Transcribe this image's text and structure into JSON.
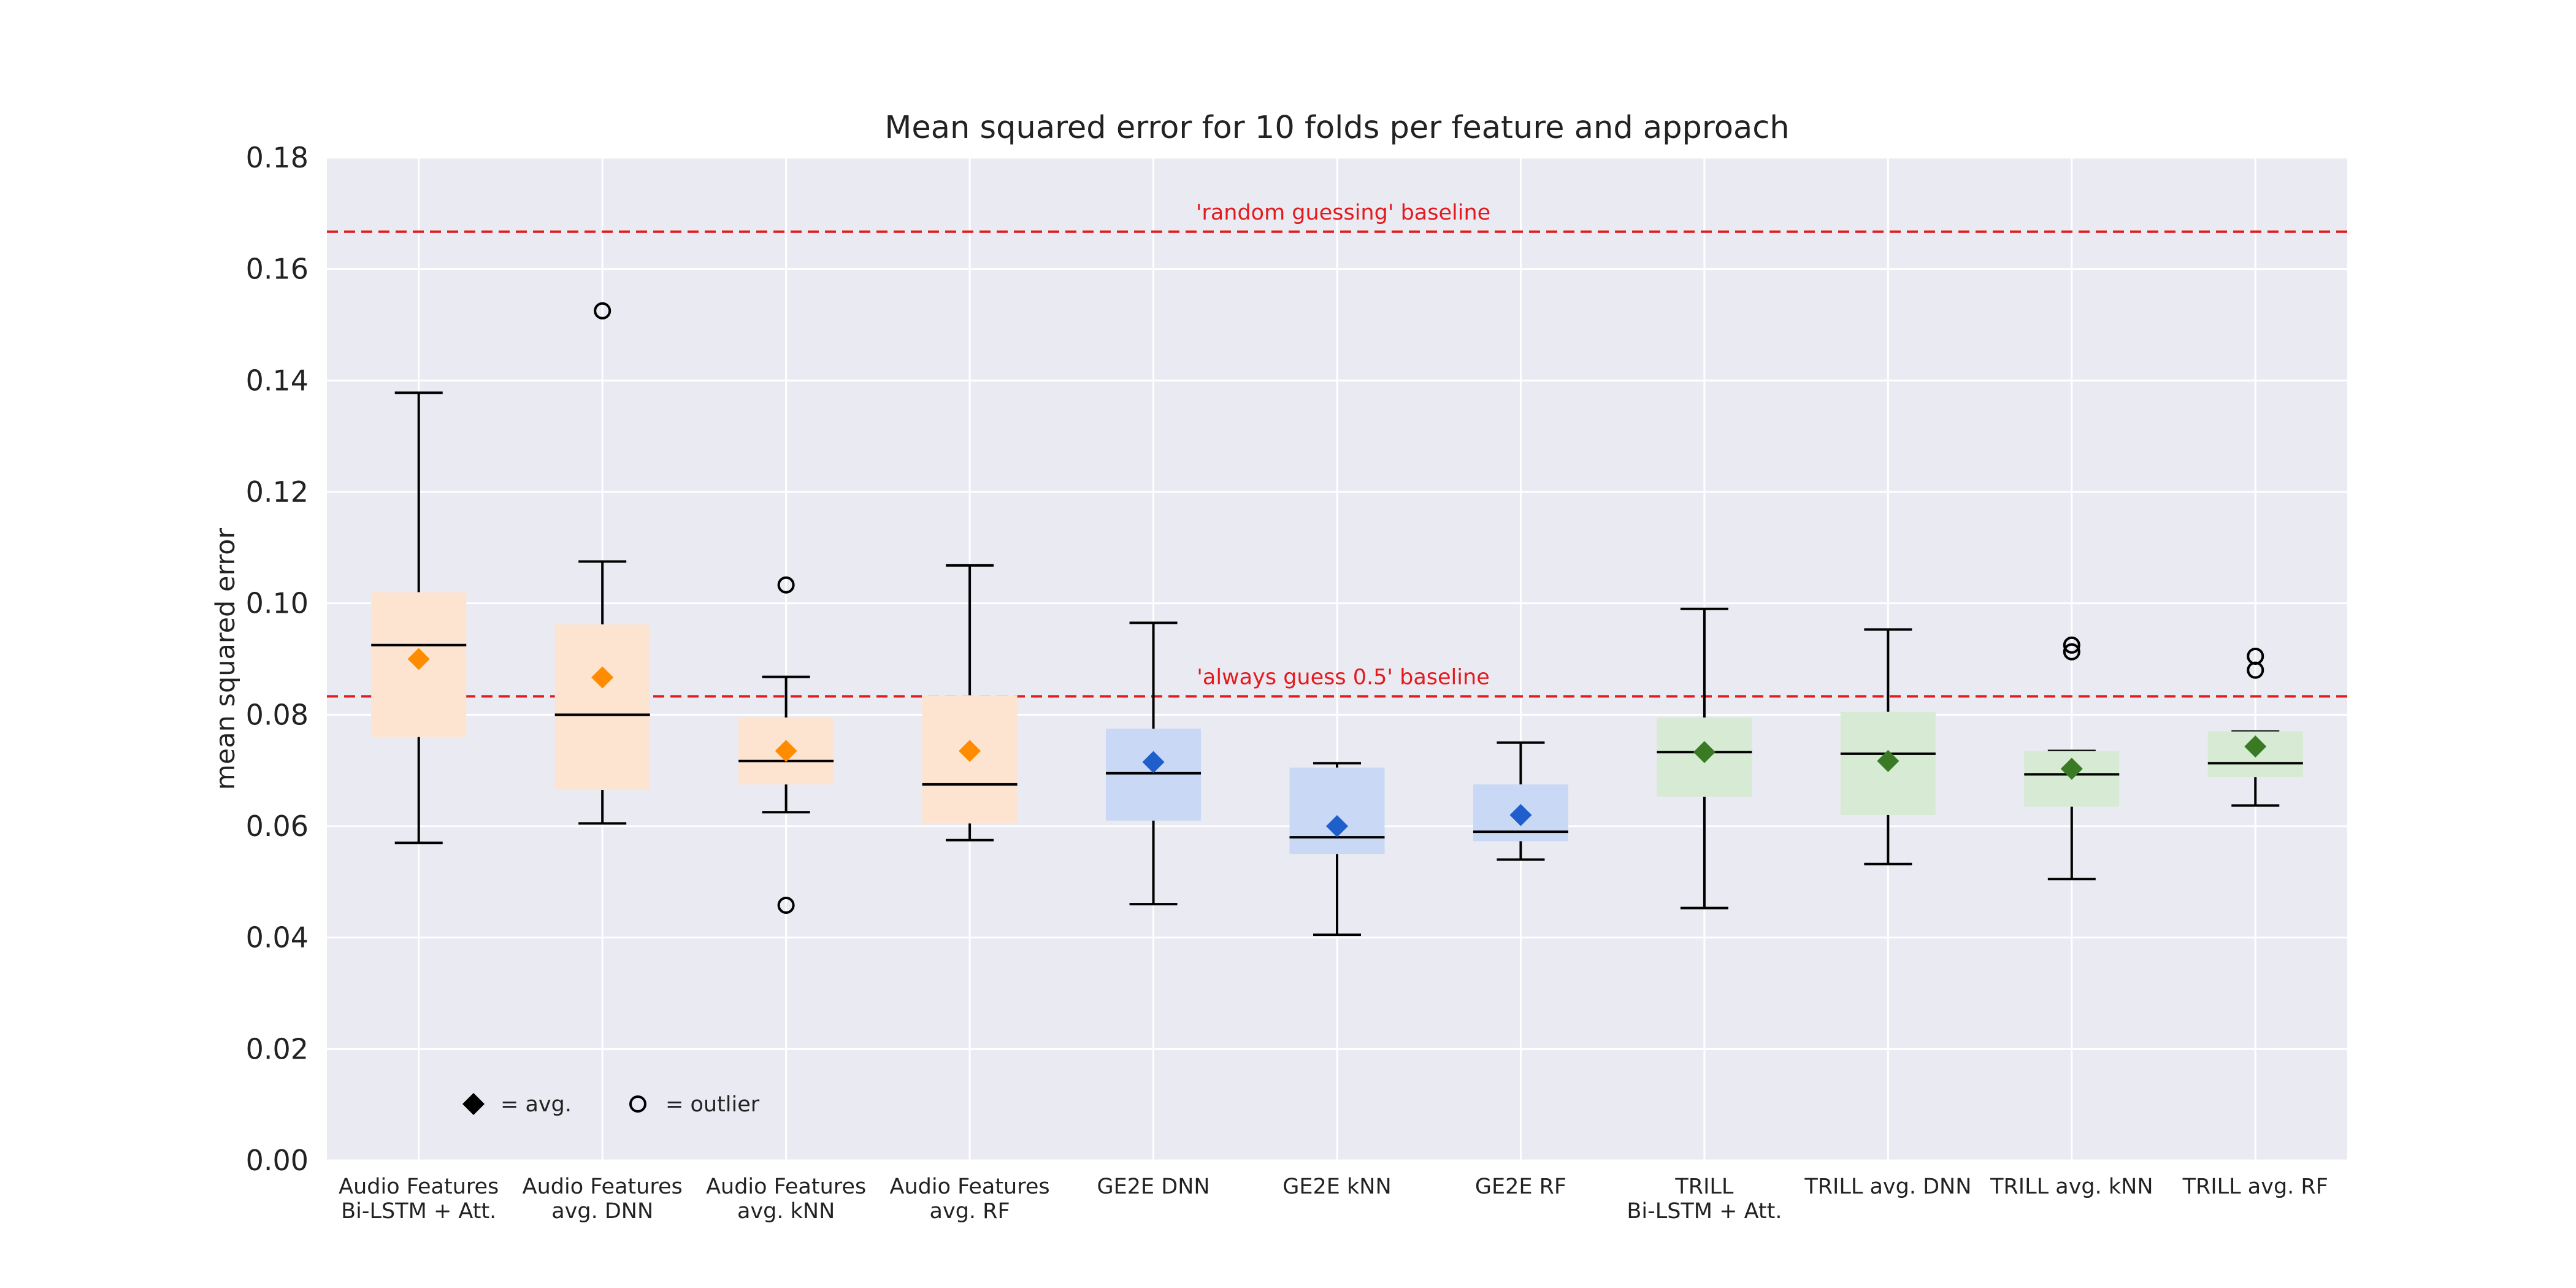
{
  "chart_data": {
    "type": "box",
    "title": "Mean squared error for 10 folds per feature and approach",
    "ylabel": "mean squared error",
    "xlabel": "",
    "ylim": [
      0,
      0.18
    ],
    "yticks": [
      "0.00",
      "0.02",
      "0.04",
      "0.06",
      "0.08",
      "0.10",
      "0.12",
      "0.14",
      "0.16",
      "0.18"
    ],
    "grid": true,
    "baselines": [
      {
        "label": "'random guessing' baseline",
        "value": 0.1667,
        "color": "#e41a1c"
      },
      {
        "label": "'always guess 0.5' baseline",
        "value": 0.0833,
        "color": "#e41a1c"
      }
    ],
    "legend": {
      "placement": "bottom-left",
      "items": [
        {
          "symbol": "diamond",
          "label": "= avg."
        },
        {
          "symbol": "circle",
          "label": "= outlier"
        }
      ]
    },
    "colors": {
      "background": "#eaeaf2",
      "audio_box": "#fde4d0",
      "audio_mean": "#ff8c00",
      "ge2e_box": "#c8d8f5",
      "ge2e_mean": "#1f5fcc",
      "trill_box": "#d7ead3",
      "trill_mean": "#3a7a24"
    },
    "categories": [
      {
        "label": [
          "Audio Features",
          "Bi-LSTM + Att."
        ],
        "group": "audio",
        "whislo": 0.057,
        "q1": 0.076,
        "median": 0.0925,
        "q3": 0.102,
        "whishi": 0.1378,
        "mean": 0.09,
        "outliers": []
      },
      {
        "label": [
          "Audio Features",
          "avg. DNN"
        ],
        "group": "audio",
        "whislo": 0.0605,
        "q1": 0.0665,
        "median": 0.08,
        "q3": 0.0962,
        "whishi": 0.1075,
        "mean": 0.0867,
        "outliers": [
          0.1525
        ]
      },
      {
        "label": [
          "Audio Features",
          "avg. kNN"
        ],
        "group": "audio",
        "whislo": 0.0625,
        "q1": 0.0675,
        "median": 0.0717,
        "q3": 0.0795,
        "whishi": 0.0868,
        "mean": 0.0735,
        "outliers": [
          0.1033,
          0.0458
        ]
      },
      {
        "label": [
          "Audio Features",
          "avg. RF"
        ],
        "group": "audio",
        "whislo": 0.0575,
        "q1": 0.0605,
        "median": 0.0675,
        "q3": 0.0835,
        "whishi": 0.1068,
        "mean": 0.0735,
        "outliers": []
      },
      {
        "label": [
          "GE2E DNN"
        ],
        "group": "ge2e",
        "whislo": 0.046,
        "q1": 0.061,
        "median": 0.0695,
        "q3": 0.0775,
        "whishi": 0.0965,
        "mean": 0.0715,
        "outliers": []
      },
      {
        "label": [
          "GE2E kNN"
        ],
        "group": "ge2e",
        "whislo": 0.0405,
        "q1": 0.055,
        "median": 0.058,
        "q3": 0.0705,
        "whishi": 0.0713,
        "mean": 0.06,
        "outliers": []
      },
      {
        "label": [
          "GE2E RF"
        ],
        "group": "ge2e",
        "whislo": 0.054,
        "q1": 0.0573,
        "median": 0.059,
        "q3": 0.0675,
        "whishi": 0.075,
        "mean": 0.062,
        "outliers": []
      },
      {
        "label": [
          "TRILL",
          "Bi-LSTM + Att."
        ],
        "group": "trill",
        "whislo": 0.0453,
        "q1": 0.0653,
        "median": 0.0733,
        "q3": 0.0795,
        "whishi": 0.099,
        "mean": 0.0733,
        "outliers": []
      },
      {
        "label": [
          "TRILL avg. DNN"
        ],
        "group": "trill",
        "whislo": 0.0532,
        "q1": 0.062,
        "median": 0.073,
        "q3": 0.0805,
        "whishi": 0.0953,
        "mean": 0.0717,
        "outliers": []
      },
      {
        "label": [
          "TRILL avg. kNN"
        ],
        "group": "trill",
        "whislo": 0.0505,
        "q1": 0.0635,
        "median": 0.0693,
        "q3": 0.0735,
        "whishi": 0.0735,
        "mean": 0.0703,
        "outliers": [
          0.0925,
          0.0913
        ]
      },
      {
        "label": [
          "TRILL avg. RF"
        ],
        "group": "trill",
        "whislo": 0.0637,
        "q1": 0.0688,
        "median": 0.0713,
        "q3": 0.077,
        "whishi": 0.077,
        "mean": 0.0743,
        "outliers": [
          0.0905,
          0.088
        ]
      }
    ]
  }
}
